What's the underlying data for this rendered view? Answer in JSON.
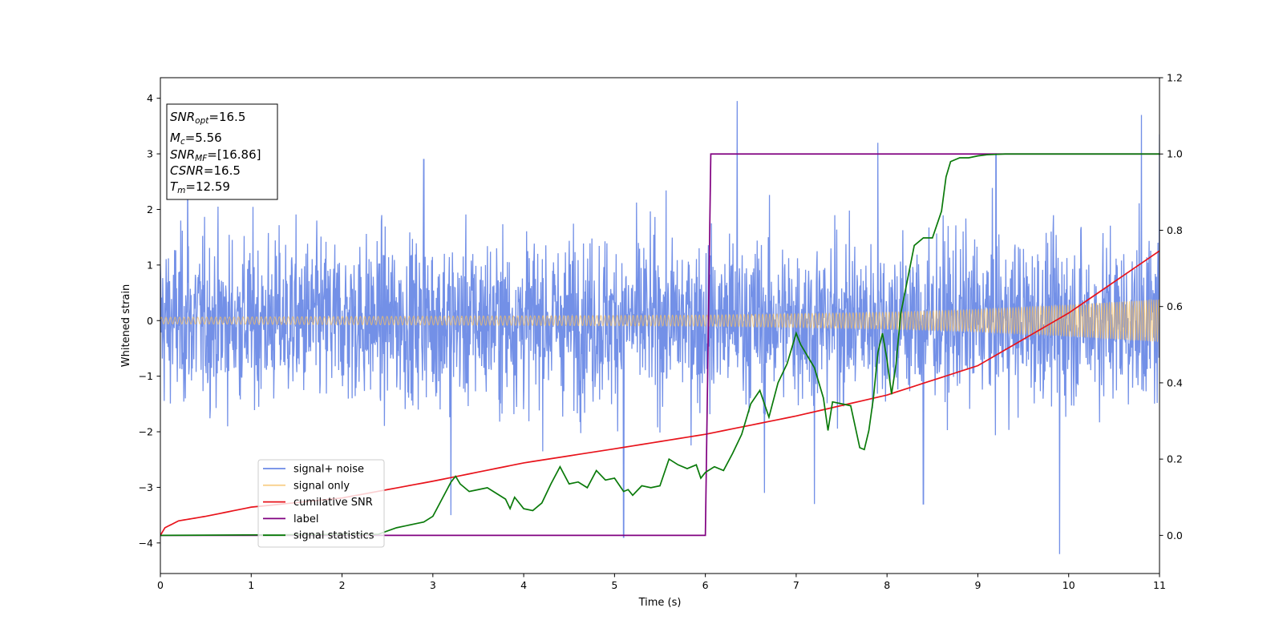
{
  "chart_data": {
    "type": "line",
    "xlabel": "Time (s)",
    "ylabel": "Whitened strain",
    "xlim": [
      0,
      11
    ],
    "ylim": [
      -4.55,
      4.37
    ],
    "y2lim": [
      -0.1,
      1.2
    ],
    "x_ticks": [
      "0",
      "1",
      "2",
      "3",
      "4",
      "5",
      "6",
      "7",
      "8",
      "9",
      "10",
      "11"
    ],
    "y_ticks": [
      "4",
      "3",
      "2",
      "1",
      "0",
      "−1",
      "−2",
      "−3",
      "−4"
    ],
    "y2_ticks": [
      "1.2",
      "1.0",
      "0.8",
      "0.6",
      "0.4",
      "0.2",
      "0.0"
    ],
    "grid": false,
    "legend_position": "lower-left",
    "annotation": [
      {
        "base": "SNR",
        "sub": "opt",
        "value": "=16.5"
      },
      {
        "base": "M",
        "sub": "c",
        "value": "=5.56"
      },
      {
        "base": "SNR",
        "sub": "MF",
        "value": "=[16.86]"
      },
      {
        "base": "CSNR",
        "sub": "",
        "value": "=16.5"
      },
      {
        "base": "T",
        "sub": "m",
        "value": "=12.59"
      }
    ],
    "series": [
      {
        "name": "signal+ noise",
        "axis": "left",
        "color": "#6b8ae6",
        "style": "dense noise, amplitude approx ±2 to ±3 with occasional spikes to ±4",
        "x": [
          0,
          11
        ],
        "spikes": [
          [
            0.3,
            2.8
          ],
          [
            2.9,
            2.9
          ],
          [
            3.2,
            -3.5
          ],
          [
            5.1,
            -3.9
          ],
          [
            6.35,
            3.95
          ],
          [
            6.65,
            -3.1
          ],
          [
            7.2,
            -3.3
          ],
          [
            7.9,
            3.2
          ],
          [
            8.4,
            -3.3
          ],
          [
            9.2,
            3.0
          ],
          [
            9.9,
            -4.2
          ],
          [
            10.8,
            3.7
          ],
          [
            11.0,
            3.35
          ]
        ]
      },
      {
        "name": "signal only",
        "axis": "left",
        "color": "#f5c066",
        "style": "chirp oscillation, amplitude grows from about 0.06 at t=0 to about 0.38 at t=11",
        "x": [
          0,
          11
        ],
        "envelope": [
          [
            0,
            0.06
          ],
          [
            6,
            0.1
          ],
          [
            8,
            0.15
          ],
          [
            9,
            0.2
          ],
          [
            10,
            0.28
          ],
          [
            11,
            0.38
          ]
        ]
      },
      {
        "name": "cumilative SNR",
        "axis": "right",
        "color": "#e8131b",
        "x": [
          0,
          0.05,
          0.2,
          0.5,
          1,
          2,
          3,
          4,
          5,
          6,
          7,
          8,
          9,
          10,
          11
        ],
        "y": [
          0.0,
          0.02,
          0.038,
          0.05,
          0.074,
          0.098,
          0.142,
          0.19,
          0.227,
          0.265,
          0.313,
          0.368,
          0.445,
          0.583,
          0.746
        ]
      },
      {
        "name": "label",
        "axis": "right",
        "color": "#800080",
        "x": [
          0,
          6.0,
          6.06,
          11
        ],
        "y": [
          0.0,
          0.0,
          1.0,
          1.0
        ]
      },
      {
        "name": "signal statistics",
        "axis": "right",
        "color": "#0a7a0a",
        "x": [
          0,
          2.4,
          2.6,
          2.8,
          2.9,
          3.0,
          3.1,
          3.2,
          3.25,
          3.3,
          3.4,
          3.5,
          3.6,
          3.7,
          3.8,
          3.85,
          3.9,
          4.0,
          4.1,
          4.2,
          4.3,
          4.4,
          4.5,
          4.6,
          4.7,
          4.8,
          4.9,
          5.0,
          5.1,
          5.15,
          5.2,
          5.3,
          5.4,
          5.5,
          5.6,
          5.7,
          5.8,
          5.9,
          5.95,
          6.0,
          6.1,
          6.2,
          6.3,
          6.4,
          6.5,
          6.6,
          6.7,
          6.8,
          6.9,
          7.0,
          7.05,
          7.1,
          7.2,
          7.3,
          7.35,
          7.4,
          7.5,
          7.6,
          7.7,
          7.75,
          7.8,
          7.85,
          7.9,
          7.95,
          8.0,
          8.05,
          8.1,
          8.15,
          8.2,
          8.3,
          8.4,
          8.5,
          8.6,
          8.65,
          8.7,
          8.8,
          8.9,
          9.0,
          9.1,
          9.3,
          9.5,
          10.0,
          10.5,
          11.0
        ],
        "y": [
          0.0,
          0.003,
          0.02,
          0.03,
          0.035,
          0.05,
          0.095,
          0.14,
          0.155,
          0.135,
          0.115,
          0.12,
          0.125,
          0.11,
          0.095,
          0.07,
          0.1,
          0.07,
          0.065,
          0.085,
          0.135,
          0.18,
          0.135,
          0.14,
          0.125,
          0.17,
          0.145,
          0.15,
          0.115,
          0.12,
          0.105,
          0.13,
          0.125,
          0.13,
          0.2,
          0.185,
          0.175,
          0.185,
          0.15,
          0.165,
          0.18,
          0.17,
          0.215,
          0.265,
          0.345,
          0.38,
          0.31,
          0.4,
          0.45,
          0.53,
          0.5,
          0.48,
          0.44,
          0.36,
          0.275,
          0.35,
          0.345,
          0.34,
          0.23,
          0.225,
          0.275,
          0.36,
          0.48,
          0.53,
          0.46,
          0.37,
          0.45,
          0.58,
          0.64,
          0.76,
          0.78,
          0.78,
          0.85,
          0.94,
          0.98,
          0.99,
          0.99,
          0.995,
          0.998,
          1.0,
          1.0,
          1.0,
          1.0,
          1.0
        ]
      }
    ]
  }
}
